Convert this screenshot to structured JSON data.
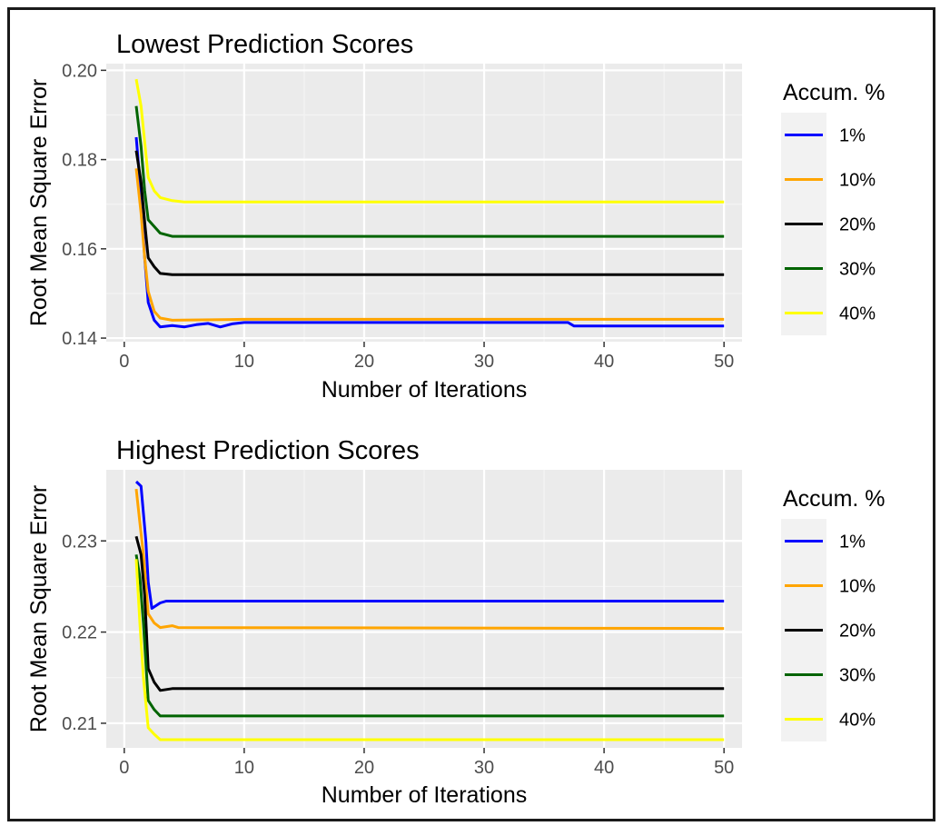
{
  "colors": {
    "panel_bg": "#EBEBEB",
    "grid_major": "#FFFFFF",
    "grid_minor": "#F4F4F4",
    "tick_label": "#4D4D4D",
    "frame": "#1A1A1A"
  },
  "chart_data": [
    {
      "type": "line",
      "title": "Lowest Prediction Scores",
      "xlabel": "Number of Iterations",
      "ylabel": "Root Mean Square Error",
      "xlim": [
        -1.5,
        51.5
      ],
      "ylim": [
        0.1392,
        0.2015
      ],
      "xticks": [
        0,
        10,
        20,
        30,
        40,
        50
      ],
      "xtick_labels": [
        "0",
        "10",
        "20",
        "30",
        "40",
        "50"
      ],
      "yticks": [
        0.14,
        0.16,
        0.18,
        0.2
      ],
      "ytick_labels": [
        "0.14",
        "0.16",
        "0.18",
        "0.20"
      ],
      "grid": true,
      "legend": {
        "title": "Accum. %",
        "position": "right",
        "entries": [
          "1%",
          "10%",
          "20%",
          "30%",
          "40%"
        ]
      },
      "series": [
        {
          "name": "1%",
          "color": "#0000FF",
          "points": [
            [
              1.0,
              0.185
            ],
            [
              1.4,
              0.172
            ],
            [
              1.7,
              0.158
            ],
            [
              2.0,
              0.148
            ],
            [
              2.5,
              0.144
            ],
            [
              3.0,
              0.1425
            ],
            [
              4.0,
              0.1428
            ],
            [
              5.0,
              0.1425
            ],
            [
              6.0,
              0.143
            ],
            [
              7.0,
              0.1433
            ],
            [
              8.0,
              0.1425
            ],
            [
              9.0,
              0.1432
            ],
            [
              10.0,
              0.1435
            ],
            [
              20.0,
              0.1435
            ],
            [
              37.0,
              0.1435
            ],
            [
              37.5,
              0.1427
            ],
            [
              50.0,
              0.1427
            ]
          ]
        },
        {
          "name": "10%",
          "color": "#FFA500",
          "points": [
            [
              1.0,
              0.178
            ],
            [
              1.4,
              0.168
            ],
            [
              1.7,
              0.158
            ],
            [
              2.0,
              0.1505
            ],
            [
              2.5,
              0.146
            ],
            [
              3.0,
              0.1445
            ],
            [
              4.0,
              0.144
            ],
            [
              10.0,
              0.1442
            ],
            [
              50.0,
              0.1442
            ]
          ]
        },
        {
          "name": "20%",
          "color": "#000000",
          "points": [
            [
              1.0,
              0.182
            ],
            [
              1.4,
              0.175
            ],
            [
              1.7,
              0.166
            ],
            [
              2.0,
              0.158
            ],
            [
              2.5,
              0.156
            ],
            [
              3.0,
              0.1545
            ],
            [
              4.0,
              0.1542
            ],
            [
              50.0,
              0.1542
            ]
          ]
        },
        {
          "name": "30%",
          "color": "#006400",
          "points": [
            [
              1.0,
              0.192
            ],
            [
              1.4,
              0.183
            ],
            [
              1.7,
              0.173
            ],
            [
              2.0,
              0.1665
            ],
            [
              2.5,
              0.165
            ],
            [
              3.0,
              0.1635
            ],
            [
              4.0,
              0.1628
            ],
            [
              50.0,
              0.1628
            ]
          ]
        },
        {
          "name": "40%",
          "color": "#FFFF00",
          "points": [
            [
              1.0,
              0.198
            ],
            [
              1.4,
              0.192
            ],
            [
              1.7,
              0.184
            ],
            [
              2.0,
              0.176
            ],
            [
              2.5,
              0.173
            ],
            [
              3.0,
              0.1715
            ],
            [
              4.0,
              0.1708
            ],
            [
              5.0,
              0.1705
            ],
            [
              50.0,
              0.1705
            ]
          ]
        }
      ]
    },
    {
      "type": "line",
      "title": "Highest Prediction Scores",
      "xlabel": "Number of Iterations",
      "ylabel": "Root Mean Square Error",
      "xlim": [
        -1.5,
        51.5
      ],
      "ylim": [
        0.2073,
        0.2378
      ],
      "xticks": [
        0,
        10,
        20,
        30,
        40,
        50
      ],
      "xtick_labels": [
        "0",
        "10",
        "20",
        "30",
        "40",
        "50"
      ],
      "yticks": [
        0.21,
        0.22,
        0.23
      ],
      "ytick_labels": [
        "0.21",
        "0.22",
        "0.23"
      ],
      "grid": true,
      "legend": {
        "title": "Accum. %",
        "position": "right",
        "entries": [
          "1%",
          "10%",
          "20%",
          "30%",
          "40%"
        ]
      },
      "series": [
        {
          "name": "1%",
          "color": "#0000FF",
          "points": [
            [
              1.0,
              0.2365
            ],
            [
              1.4,
              0.236
            ],
            [
              1.8,
              0.23
            ],
            [
              2.0,
              0.2255
            ],
            [
              2.3,
              0.2226
            ],
            [
              3.0,
              0.2232
            ],
            [
              3.5,
              0.2234
            ],
            [
              50.0,
              0.2234
            ]
          ]
        },
        {
          "name": "10%",
          "color": "#FFA500",
          "points": [
            [
              1.0,
              0.2357
            ],
            [
              1.3,
              0.232
            ],
            [
              1.6,
              0.2285
            ],
            [
              2.0,
              0.222
            ],
            [
              2.5,
              0.221
            ],
            [
              3.0,
              0.2205
            ],
            [
              4.0,
              0.2207
            ],
            [
              4.5,
              0.2205
            ],
            [
              50.0,
              0.2204
            ]
          ]
        },
        {
          "name": "20%",
          "color": "#000000",
          "points": [
            [
              1.0,
              0.2305
            ],
            [
              1.4,
              0.2285
            ],
            [
              1.7,
              0.224
            ],
            [
              2.0,
              0.216
            ],
            [
              2.5,
              0.2145
            ],
            [
              3.0,
              0.2136
            ],
            [
              4.0,
              0.2138
            ],
            [
              50.0,
              0.2138
            ]
          ]
        },
        {
          "name": "30%",
          "color": "#006400",
          "points": [
            [
              1.0,
              0.2285
            ],
            [
              1.3,
              0.226
            ],
            [
              1.6,
              0.221
            ],
            [
              2.0,
              0.2125
            ],
            [
              2.5,
              0.2115
            ],
            [
              3.0,
              0.2108
            ],
            [
              50.0,
              0.2108
            ]
          ]
        },
        {
          "name": "40%",
          "color": "#FFFF00",
          "points": [
            [
              1.0,
              0.228
            ],
            [
              1.3,
              0.221
            ],
            [
              1.6,
              0.215
            ],
            [
              2.0,
              0.2095
            ],
            [
              2.5,
              0.2088
            ],
            [
              3.0,
              0.2082
            ],
            [
              4.0,
              0.2082
            ],
            [
              50.0,
              0.2082
            ]
          ]
        }
      ]
    }
  ]
}
